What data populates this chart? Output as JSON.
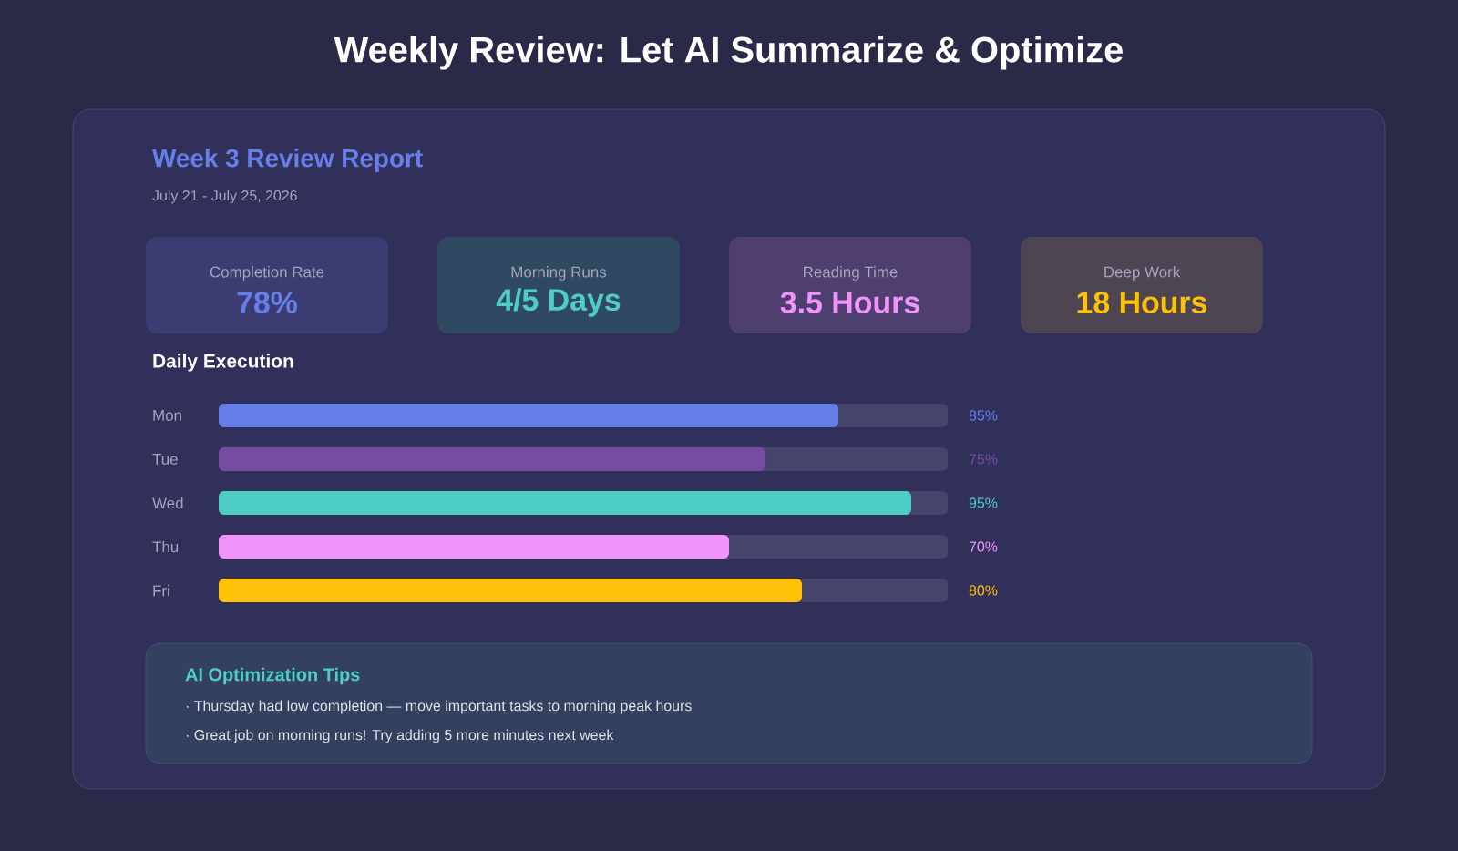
{
  "chart_data": {
    "type": "bar",
    "orientation": "horizontal",
    "title": "Weekly Review: Let AI Summarize & Optimize",
    "subtitle": "Week 3 Review Report",
    "categories": [
      "Mon",
      "Tue",
      "Wed",
      "Thu",
      "Fri"
    ],
    "values": [
      85,
      75,
      95,
      70,
      80
    ],
    "colors": [
      "#667eea",
      "#764ba2",
      "#4ecdc4",
      "#f093fb",
      "#ffc107"
    ],
    "value_labels": [
      "85%",
      "75%",
      "95%",
      "70%",
      "80%"
    ],
    "xlim": [
      0,
      100
    ],
    "annotations": [
      "July 21 - July 25, 2026",
      "Completion Rate",
      "78%",
      "Morning Runs",
      "4/5 Days",
      "Reading Time",
      "3.5 Hours",
      "Deep Work",
      "18 Hours",
      "Daily Execution",
      "AI Optimization Tips",
      "· Thursday had low completion — move important tasks to morning peak hours",
      "· Great job on morning runs! Try adding 5 more minutes next week"
    ]
  }
}
